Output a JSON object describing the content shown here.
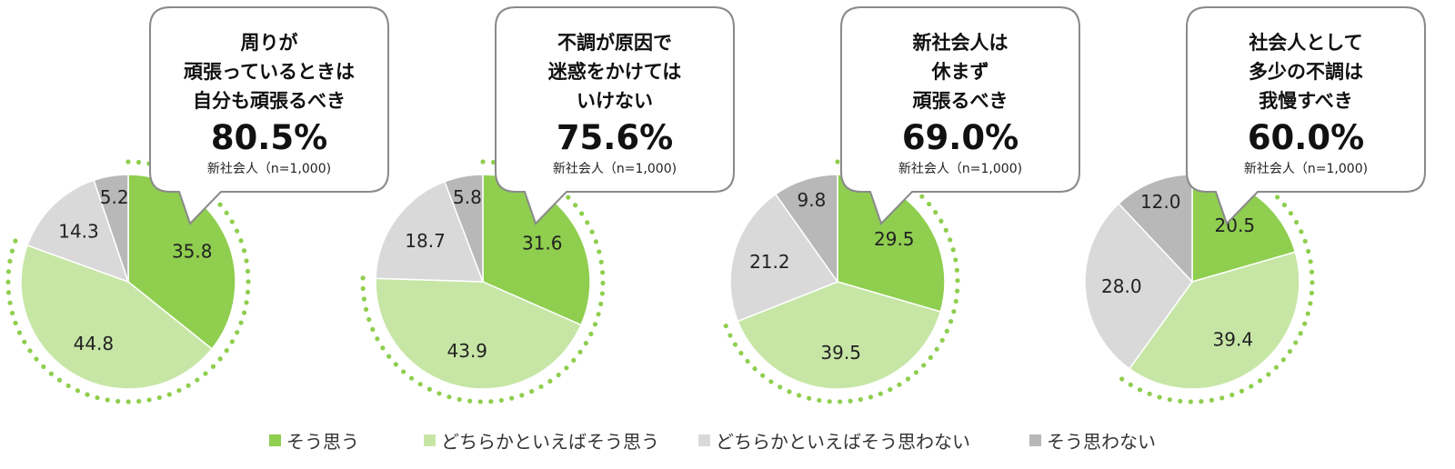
{
  "chart_data": [
    {
      "type": "pie",
      "callout": {
        "lines": [
          "周りが",
          "頑張っているときは",
          "自分も頑張るべき"
        ],
        "percent": "80.5%",
        "note": "新社会人（n=1,000)"
      },
      "categories": [
        "そう思う",
        "どちらかといえばそう思う",
        "どちらかといえばそう思わない",
        "そう思わない"
      ],
      "values": [
        35.8,
        44.8,
        14.3,
        5.2
      ]
    },
    {
      "type": "pie",
      "callout": {
        "lines": [
          "不調が原因で",
          "迷惑をかけては",
          "いけない"
        ],
        "percent": "75.6%",
        "note": "新社会人（n=1,000)"
      },
      "categories": [
        "そう思う",
        "どちらかといえばそう思う",
        "どちらかといえばそう思わない",
        "そう思わない"
      ],
      "values": [
        31.6,
        43.9,
        18.7,
        5.8
      ]
    },
    {
      "type": "pie",
      "callout": {
        "lines": [
          "新社会人は",
          "休まず",
          "頑張るべき"
        ],
        "percent": "69.0%",
        "note": "新社会人（n=1,000)"
      },
      "categories": [
        "そう思う",
        "どちらかといえばそう思う",
        "どちらかといえばそう思わない",
        "そう思わない"
      ],
      "values": [
        29.5,
        39.5,
        21.2,
        9.8
      ]
    },
    {
      "type": "pie",
      "callout": {
        "lines": [
          "社会人として",
          "多少の不調は",
          "我慢すべき"
        ],
        "percent": "60.0%",
        "note": "新社会人（n=1,000)"
      },
      "categories": [
        "そう思う",
        "どちらかといえばそう思う",
        "どちらかといえばそう思わない",
        "そう思わない"
      ],
      "values": [
        20.5,
        39.4,
        28.0,
        12.0
      ]
    }
  ],
  "legend": [
    {
      "label": "そう思う",
      "color": "#8fce4f"
    },
    {
      "label": "どちらかといえばそう思う",
      "color": "#c7e6a6"
    },
    {
      "label": "どちらかといえばそう思わない",
      "color": "#d9d9d9"
    },
    {
      "label": "そう思わない",
      "color": "#b8b8b8"
    }
  ],
  "colors": {
    "slices": [
      "#8fce4f",
      "#c7e6a6",
      "#d9d9d9",
      "#b8b8b8"
    ],
    "dots": "#8fce4f",
    "callout_border": "#8a8a8a"
  }
}
